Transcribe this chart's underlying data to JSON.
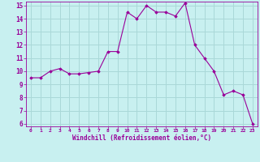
{
  "x": [
    0,
    1,
    2,
    3,
    4,
    5,
    6,
    7,
    8,
    9,
    10,
    11,
    12,
    13,
    14,
    15,
    16,
    17,
    18,
    19,
    20,
    21,
    22,
    23
  ],
  "y": [
    9.5,
    9.5,
    10.0,
    10.2,
    9.8,
    9.8,
    9.9,
    10.0,
    11.5,
    11.5,
    14.5,
    14.0,
    15.0,
    14.5,
    14.5,
    14.2,
    15.2,
    12.0,
    11.0,
    10.0,
    8.2,
    8.5,
    8.2,
    6.0
  ],
  "line_color": "#990099",
  "marker_color": "#990099",
  "bg_color": "#c8f0f0",
  "grid_color": "#aad8d8",
  "xlabel": "Windchill (Refroidissement éolien,°C)",
  "xlabel_color": "#990099",
  "tick_color": "#990099",
  "ylim": [
    5.8,
    15.3
  ],
  "xlim": [
    -0.5,
    23.5
  ],
  "yticks": [
    6,
    7,
    8,
    9,
    10,
    11,
    12,
    13,
    14,
    15
  ],
  "xticks": [
    0,
    1,
    2,
    3,
    4,
    5,
    6,
    7,
    8,
    9,
    10,
    11,
    12,
    13,
    14,
    15,
    16,
    17,
    18,
    19,
    20,
    21,
    22,
    23
  ]
}
